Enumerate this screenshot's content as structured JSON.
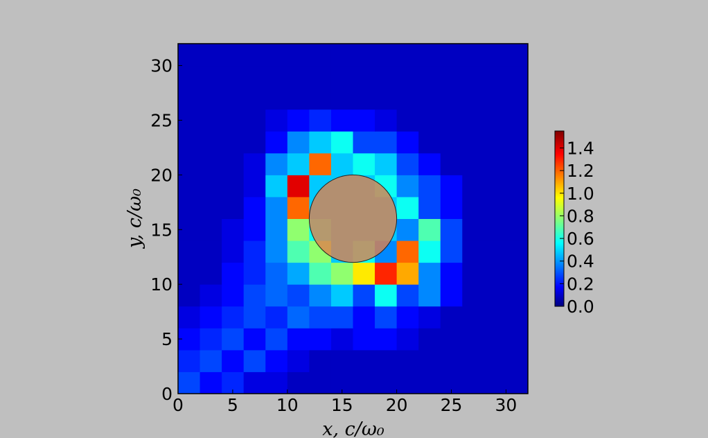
{
  "chart_data": {
    "type": "heatmap",
    "colormap": "jet",
    "xlabel": "x,  c/ω₀",
    "ylabel": "y,  c/ω₀",
    "xlim": [
      0,
      32
    ],
    "ylim": [
      0,
      32
    ],
    "xticks": [
      0,
      5,
      10,
      15,
      20,
      25,
      30
    ],
    "yticks": [
      0,
      5,
      10,
      15,
      20,
      25,
      30
    ],
    "clim": [
      0,
      1.55
    ],
    "cticks": [
      {
        "value": 0,
        "label": "0.0"
      },
      {
        "value": 0.2,
        "label": "0.2"
      },
      {
        "value": 0.4,
        "label": "0.4"
      },
      {
        "value": 0.6,
        "label": "0.6"
      },
      {
        "value": 0.8,
        "label": "0.8"
      },
      {
        "value": 1.0,
        "label": "1.0"
      },
      {
        "value": 1.2,
        "label": "1.2"
      },
      {
        "value": 1.4,
        "label": "1.4"
      }
    ],
    "circle": {
      "x": 16,
      "y": 16,
      "r": 4,
      "color": "#e0804c"
    },
    "z": [
      [
        0.3,
        0.2,
        0.25,
        0.15,
        0.15,
        0.1,
        0.1,
        0.1,
        0.1,
        0.1,
        0.1,
        0.1,
        0.1,
        0.1,
        0.1,
        0.1
      ],
      [
        0.25,
        0.3,
        0.2,
        0.3,
        0.2,
        0.15,
        0.1,
        0.1,
        0.1,
        0.1,
        0.1,
        0.1,
        0.1,
        0.1,
        0.1,
        0.1
      ],
      [
        0.2,
        0.25,
        0.3,
        0.2,
        0.3,
        0.2,
        0.2,
        0.15,
        0.2,
        0.2,
        0.15,
        0.1,
        0.1,
        0.1,
        0.1,
        0.1
      ],
      [
        0.15,
        0.2,
        0.25,
        0.3,
        0.25,
        0.35,
        0.3,
        0.3,
        0.2,
        0.3,
        0.2,
        0.15,
        0.1,
        0.1,
        0.1,
        0.1
      ],
      [
        0.1,
        0.15,
        0.2,
        0.3,
        0.35,
        0.3,
        0.4,
        0.5,
        0.3,
        0.6,
        0.3,
        0.4,
        0.2,
        0.1,
        0.1,
        0.1
      ],
      [
        0.1,
        0.1,
        0.2,
        0.25,
        0.35,
        0.45,
        0.7,
        0.8,
        1.0,
        1.3,
        1.1,
        0.4,
        0.2,
        0.1,
        0.1,
        0.1
      ],
      [
        0.1,
        0.1,
        0.15,
        0.25,
        0.4,
        0.7,
        0.8,
        0.5,
        0.6,
        0.4,
        1.2,
        0.6,
        0.3,
        0.1,
        0.1,
        0.1
      ],
      [
        0.1,
        0.1,
        0.15,
        0.2,
        0.4,
        0.8,
        0.6,
        0.5,
        0.5,
        0.5,
        0.4,
        0.7,
        0.3,
        0.1,
        0.1,
        0.1
      ],
      [
        0.1,
        0.1,
        0.1,
        0.2,
        0.4,
        1.2,
        0.5,
        0.5,
        0.5,
        0.5,
        0.6,
        0.3,
        0.2,
        0.1,
        0.1,
        0.1
      ],
      [
        0.1,
        0.1,
        0.1,
        0.15,
        0.5,
        1.4,
        0.5,
        0.5,
        0.5,
        0.6,
        0.4,
        0.3,
        0.2,
        0.1,
        0.1,
        0.1
      ],
      [
        0.1,
        0.1,
        0.1,
        0.15,
        0.4,
        0.5,
        1.2,
        0.5,
        0.6,
        0.5,
        0.3,
        0.2,
        0.1,
        0.1,
        0.1,
        0.1
      ],
      [
        0.1,
        0.1,
        0.1,
        0.1,
        0.2,
        0.4,
        0.5,
        0.6,
        0.3,
        0.3,
        0.2,
        0.1,
        0.1,
        0.1,
        0.1,
        0.1
      ],
      [
        0.1,
        0.1,
        0.1,
        0.1,
        0.15,
        0.2,
        0.25,
        0.2,
        0.2,
        0.15,
        0.1,
        0.1,
        0.1,
        0.1,
        0.1,
        0.1
      ],
      [
        0.1,
        0.1,
        0.1,
        0.1,
        0.1,
        0.1,
        0.1,
        0.1,
        0.1,
        0.1,
        0.1,
        0.1,
        0.1,
        0.1,
        0.1,
        0.1
      ],
      [
        0.1,
        0.1,
        0.1,
        0.1,
        0.1,
        0.1,
        0.1,
        0.1,
        0.1,
        0.1,
        0.1,
        0.1,
        0.1,
        0.1,
        0.1,
        0.1
      ],
      [
        0.1,
        0.1,
        0.1,
        0.1,
        0.1,
        0.1,
        0.1,
        0.1,
        0.1,
        0.1,
        0.1,
        0.1,
        0.1,
        0.1,
        0.1,
        0.1
      ]
    ]
  }
}
